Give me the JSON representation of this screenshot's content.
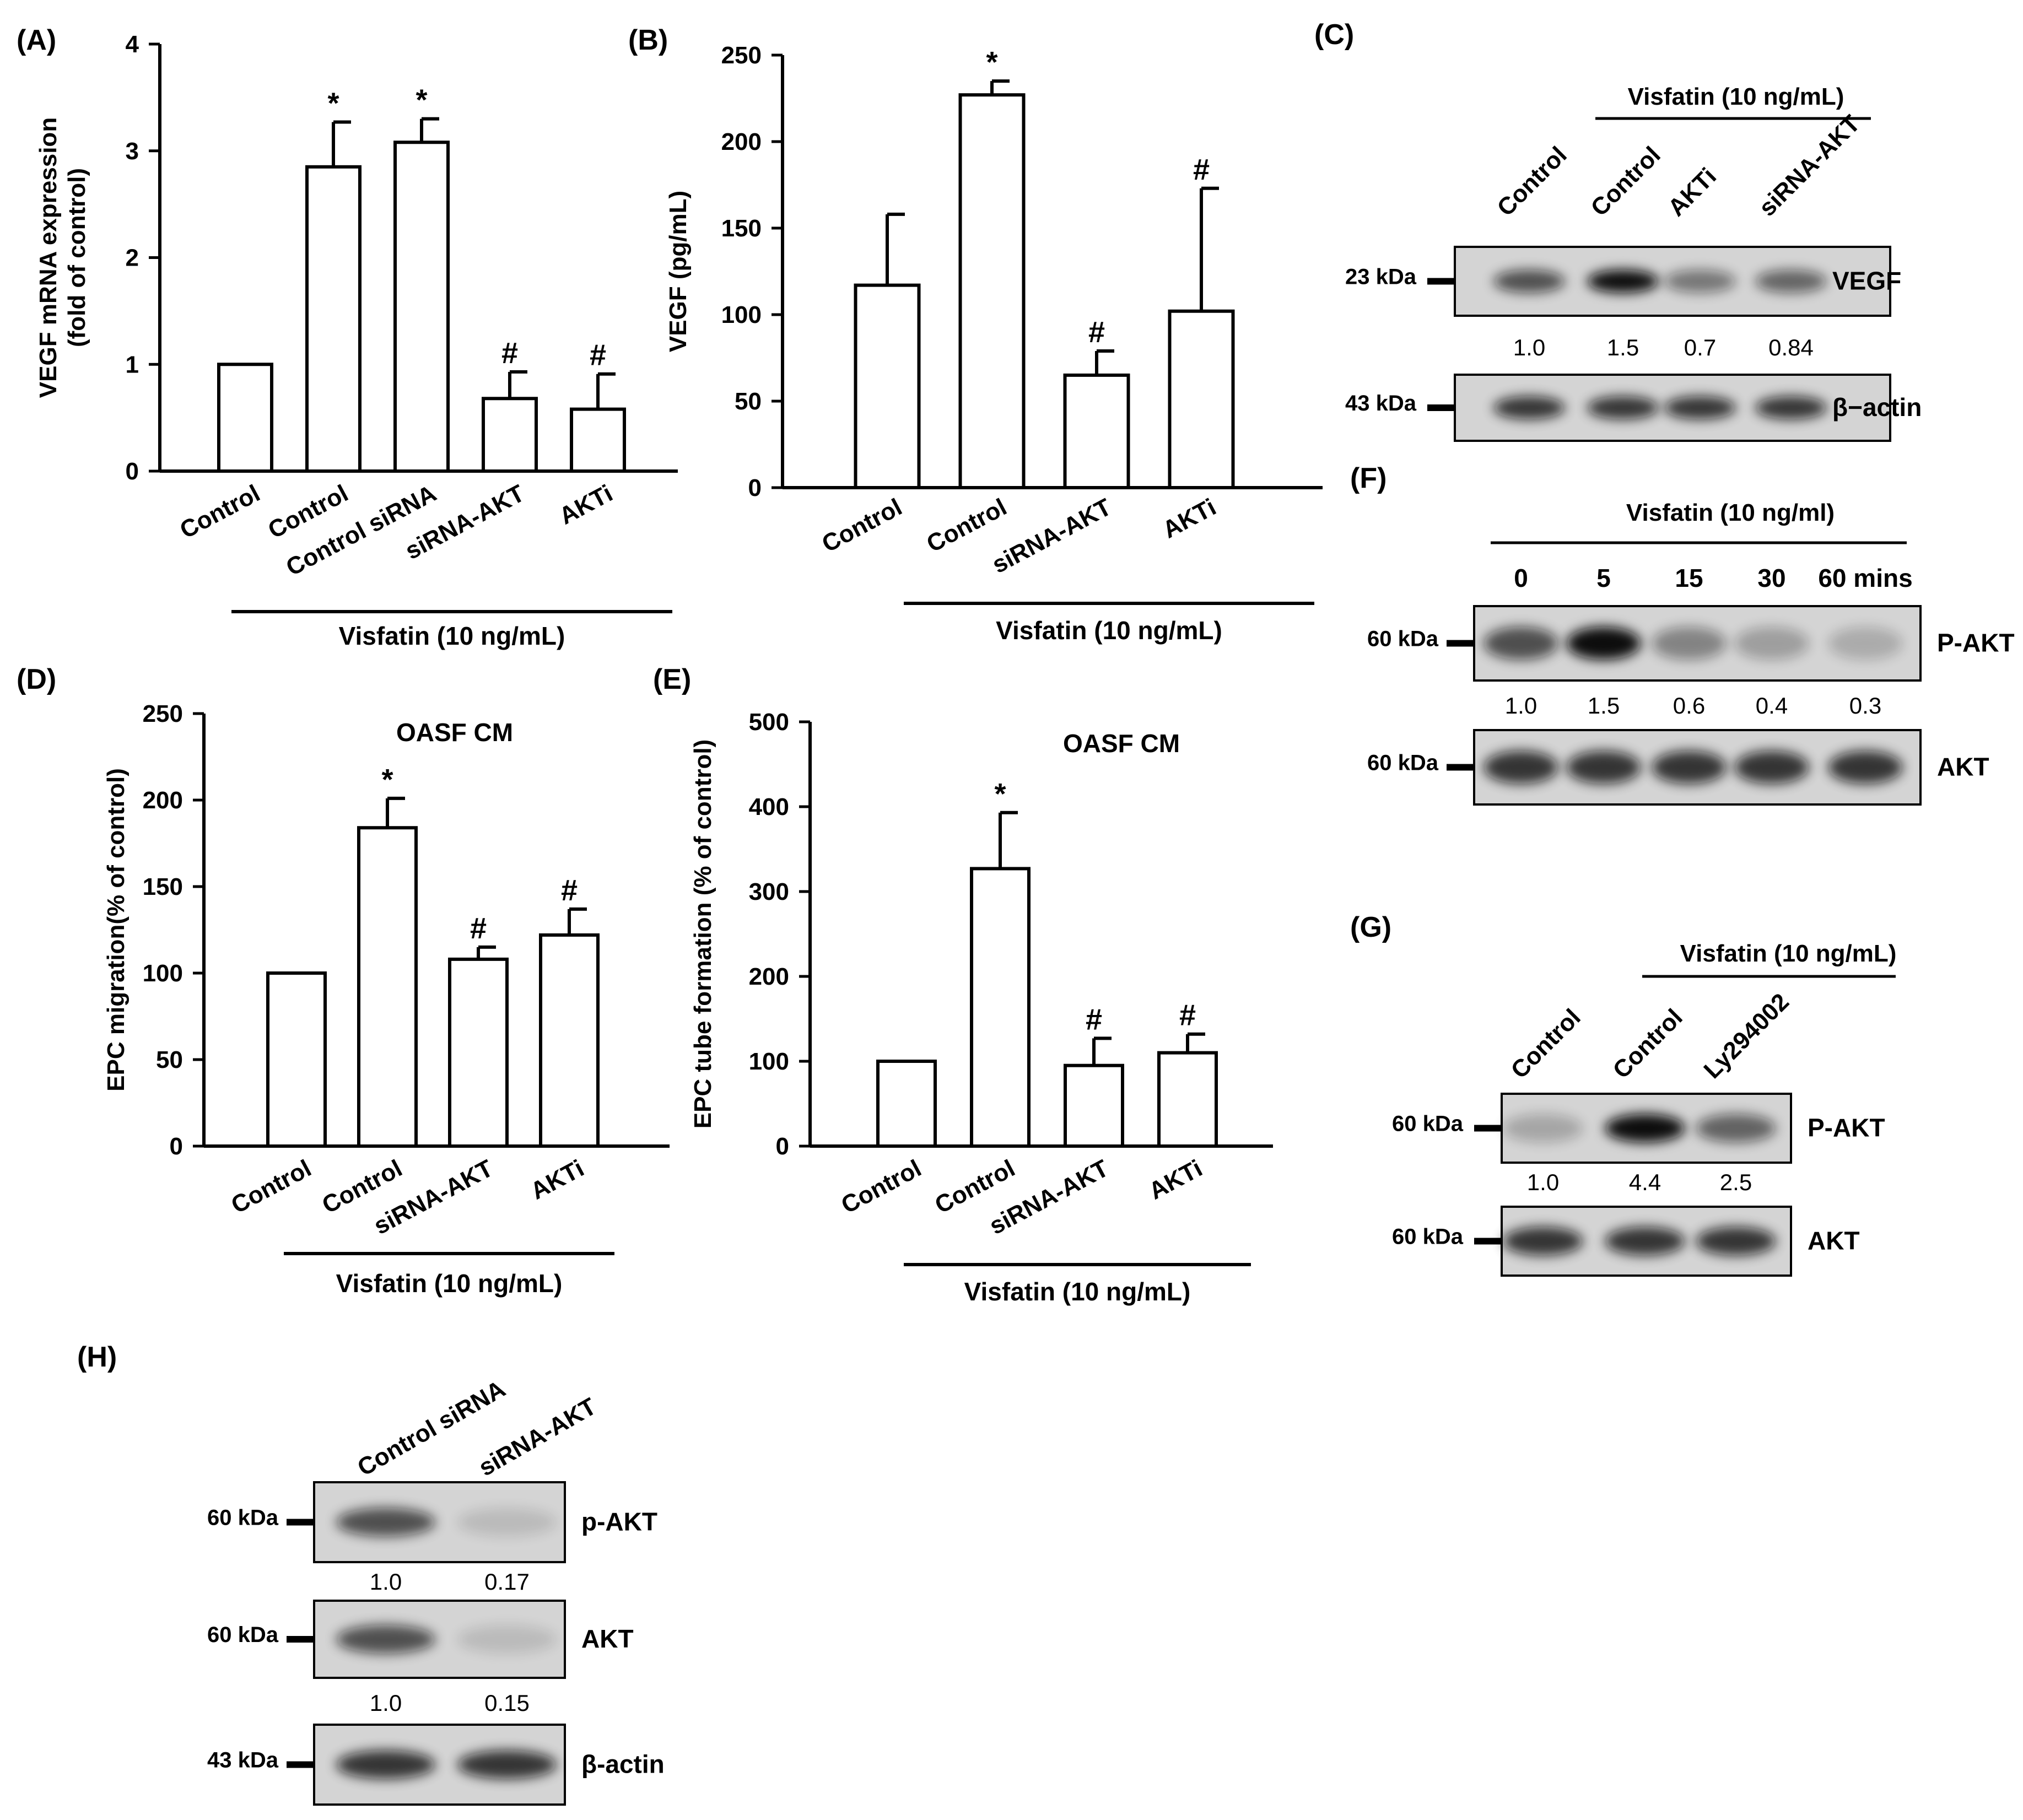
{
  "panels": {
    "A": "(A)",
    "B": "(B)",
    "C": "(C)",
    "D": "(D)",
    "E": "(E)",
    "F": "(F)",
    "G": "(G)",
    "H": "(H)"
  },
  "chart_data": [
    {
      "id": "A",
      "type": "bar",
      "title": "",
      "ylabel": "VEGF mRNA expression\n(fold of control)",
      "xlabel": "",
      "ylim": [
        0,
        4
      ],
      "yticks": [
        0,
        1,
        2,
        3,
        4
      ],
      "categories": [
        "Control",
        "Control",
        "Control siRNA",
        "siRNA-AKT",
        "AKTi"
      ],
      "values": [
        1.0,
        2.85,
        3.08,
        0.68,
        0.58
      ],
      "errors": [
        0,
        0.42,
        0.22,
        0.25,
        0.33
      ],
      "annotations": [
        "",
        "*",
        "*",
        "#",
        "#"
      ],
      "group_label": "Visfatin (10 ng/mL)",
      "group_span": [
        1,
        4
      ]
    },
    {
      "id": "B",
      "type": "bar",
      "title": "",
      "ylabel": "VEGF (pg/mL)",
      "xlabel": "",
      "ylim": [
        0,
        250
      ],
      "yticks": [
        0,
        50,
        100,
        150,
        200,
        250
      ],
      "categories": [
        "Control",
        "Control",
        "siRNA-AKT",
        "AKTi"
      ],
      "values": [
        117,
        227,
        65,
        102
      ],
      "errors": [
        41,
        8,
        14,
        71
      ],
      "annotations": [
        "",
        "*",
        "#",
        "#"
      ],
      "group_label": "Visfatin (10 ng/mL)",
      "group_span": [
        1,
        3
      ]
    },
    {
      "id": "D",
      "type": "bar",
      "title": "OASF CM",
      "ylabel": "EPC migration(% of control)",
      "xlabel": "",
      "ylim": [
        0,
        250
      ],
      "yticks": [
        0,
        50,
        100,
        150,
        200,
        250
      ],
      "categories": [
        "Control",
        "Control",
        "siRNA-AKT",
        "AKTi"
      ],
      "values": [
        100,
        184,
        108,
        122
      ],
      "errors": [
        0,
        17,
        7,
        15
      ],
      "annotations": [
        "",
        "*",
        "#",
        "#"
      ],
      "group_label": "Visfatin (10 ng/mL)",
      "group_span": [
        1,
        3
      ]
    },
    {
      "id": "E",
      "type": "bar",
      "title": "OASF CM",
      "ylabel": "EPC tube formation (% of control)",
      "xlabel": "",
      "ylim": [
        0,
        500
      ],
      "yticks": [
        0,
        100,
        200,
        300,
        400,
        500
      ],
      "categories": [
        "Control",
        "Control",
        "siRNA-AKT",
        "AKTi"
      ],
      "values": [
        100,
        327,
        95,
        110
      ],
      "errors": [
        0,
        66,
        32,
        22
      ],
      "annotations": [
        "",
        "*",
        "#",
        "#"
      ],
      "group_label": "Visfatin (10 ng/mL)",
      "group_span": [
        1,
        3
      ]
    }
  ],
  "blots": {
    "C": {
      "header": "Visfatin (10 ng/mL)",
      "lanes": [
        "Control",
        "Control",
        "AKTi",
        "siRNA-AKT"
      ],
      "rows": [
        {
          "marker": "23 kDa",
          "label": "VEGF",
          "intensity": [
            1.0,
            1.5,
            0.7,
            0.84
          ],
          "quant": [
            "1.0",
            "1.5",
            "0.7",
            "0.84"
          ]
        },
        {
          "marker": "43 kDa",
          "label": "β−actin",
          "intensity": [
            1.2,
            1.2,
            1.2,
            1.2
          ]
        }
      ]
    },
    "F": {
      "header": "Visfatin (10 ng/ml)",
      "lanes": [
        "0",
        "5",
        "15",
        "30",
        "60 mins"
      ],
      "rows": [
        {
          "marker": "60 kDa",
          "label": "P-AKT",
          "intensity": [
            1.0,
            1.5,
            0.6,
            0.4,
            0.3
          ],
          "quant": [
            "1.0",
            "1.5",
            "0.6",
            "0.4",
            "0.3"
          ]
        },
        {
          "marker": "60 kDa",
          "label": "AKT",
          "intensity": [
            1.2,
            1.2,
            1.2,
            1.2,
            1.2
          ]
        }
      ]
    },
    "G": {
      "header": "Visfatin (10 ng/mL)",
      "lanes": [
        "Control",
        "Control",
        "Ly294002"
      ],
      "rows": [
        {
          "marker": "60 kDa",
          "label": "P-AKT",
          "intensity": [
            1.0,
            4.4,
            2.5
          ],
          "quant": [
            "1.0",
            "4.4",
            "2.5"
          ]
        },
        {
          "marker": "60 kDa",
          "label": "AKT",
          "intensity": [
            1.2,
            1.2,
            1.2
          ]
        }
      ]
    },
    "H": {
      "lanes": [
        "Control siRNA",
        "siRNA-AKT"
      ],
      "rows": [
        {
          "marker": "60 kDa",
          "label": "p-AKT",
          "intensity": [
            1.0,
            0.17
          ],
          "quant": [
            "1.0",
            "0.17"
          ]
        },
        {
          "marker": "60 kDa",
          "label": "AKT",
          "intensity": [
            1.0,
            0.15
          ],
          "quant": [
            "1.0",
            "0.15"
          ]
        },
        {
          "marker": "43 kDa",
          "label": "β-actin",
          "intensity": [
            1.2,
            1.2
          ]
        }
      ]
    }
  },
  "colors": {
    "ink": "#000000",
    "blot_background": "#d4d4d4",
    "band": "#0c0c0c"
  }
}
